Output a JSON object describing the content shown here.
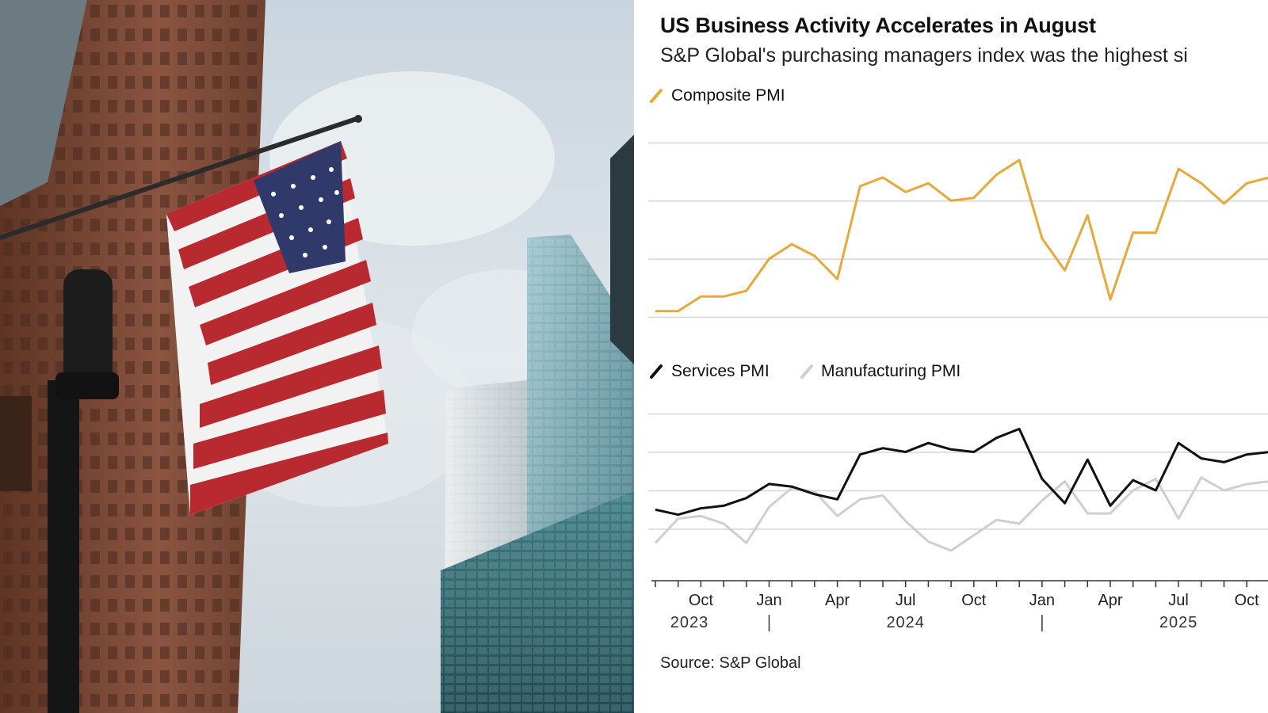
{
  "title": "US Business Activity Accelerates in August",
  "subtitle": "S&P Global's purchasing managers index was the highest si",
  "source": "Source: S&P Global",
  "colors": {
    "composite": "#e9a93a",
    "services": "#111111",
    "manufacturing": "#cfcfcf",
    "gridline": "#d6d6d6",
    "axis": "#333333"
  },
  "photo": {
    "description_icon": "american-flag-photo"
  },
  "chart_data": [
    {
      "type": "line",
      "legend_position": "top-left",
      "grid": true,
      "x": [
        "2023-08",
        "2023-09",
        "2023-10",
        "2023-11",
        "2023-12",
        "2024-01",
        "2024-02",
        "2024-03",
        "2024-04",
        "2024-05",
        "2024-06",
        "2024-07",
        "2024-08",
        "2024-09",
        "2024-10",
        "2024-11",
        "2024-12",
        "2025-01",
        "2025-02",
        "2025-03",
        "2025-04",
        "2025-05",
        "2025-06",
        "2025-07",
        "2025-08",
        "2025-09",
        "2025-10",
        "2025-11"
      ],
      "series": [
        {
          "name": "Composite PMI",
          "values": [
            50.2,
            50.2,
            50.7,
            50.7,
            50.9,
            52.0,
            52.5,
            52.1,
            51.3,
            54.5,
            54.8,
            54.3,
            54.6,
            54.0,
            54.1,
            54.9,
            55.4,
            52.7,
            51.6,
            53.5,
            50.6,
            52.9,
            52.9,
            55.1,
            54.6,
            53.9,
            54.6,
            54.8
          ]
        }
      ]
    },
    {
      "type": "line",
      "legend_position": "top-left",
      "grid": true,
      "x_ticks": [
        "Oct",
        "Jan",
        "Apr",
        "Jul",
        "Oct",
        "Jan",
        "Apr",
        "Jul",
        "Oct"
      ],
      "x_year_labels": [
        "2023",
        "2024",
        "2025"
      ],
      "x": [
        "2023-08",
        "2023-09",
        "2023-10",
        "2023-11",
        "2023-12",
        "2024-01",
        "2024-02",
        "2024-03",
        "2024-04",
        "2024-05",
        "2024-06",
        "2024-07",
        "2024-08",
        "2024-09",
        "2024-10",
        "2024-11",
        "2024-12",
        "2025-01",
        "2025-02",
        "2025-03",
        "2025-04",
        "2025-05",
        "2025-06",
        "2025-07",
        "2025-08",
        "2025-09",
        "2025-10",
        "2025-11"
      ],
      "series": [
        {
          "name": "Services PMI",
          "values": [
            50.5,
            50.1,
            50.6,
            50.8,
            51.4,
            52.5,
            52.3,
            51.7,
            51.3,
            54.8,
            55.3,
            55.0,
            55.7,
            55.2,
            55.0,
            56.1,
            56.8,
            52.9,
            51.0,
            54.4,
            50.8,
            52.8,
            52.0,
            55.7,
            54.5,
            54.2,
            54.8,
            55.0
          ]
        },
        {
          "name": "Manufacturing PMI",
          "values": [
            47.9,
            49.8,
            50.0,
            49.4,
            47.9,
            50.7,
            52.2,
            51.9,
            50.0,
            51.3,
            51.6,
            49.6,
            48.0,
            47.3,
            48.5,
            49.7,
            49.4,
            51.2,
            52.7,
            50.2,
            50.2,
            52.0,
            52.9,
            49.8,
            53.0,
            52.0,
            52.5,
            52.7
          ]
        }
      ]
    }
  ]
}
